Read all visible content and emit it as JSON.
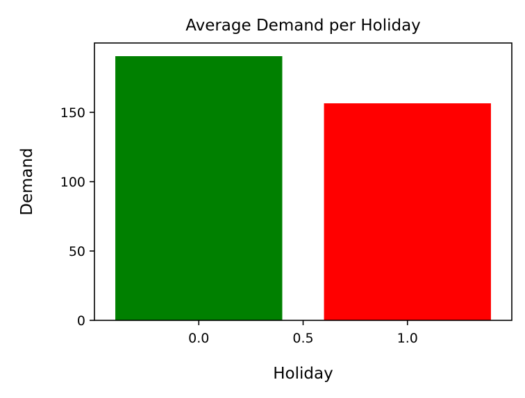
{
  "chart_data": {
    "type": "bar",
    "title": "Average Demand per Holiday",
    "xlabel": "Holiday",
    "ylabel": "Demand",
    "x": [
      0.0,
      1.0
    ],
    "values": [
      190.5,
      156.5
    ],
    "bar_width": 0.8,
    "colors": [
      "#008000",
      "#ff0000"
    ],
    "xlim": [
      -0.5,
      1.5
    ],
    "ylim": [
      0,
      200
    ],
    "xticks": [
      0.0,
      0.5,
      1.0
    ],
    "xtick_labels": [
      "0.0",
      "0.5",
      "1.0"
    ],
    "yticks": [
      0,
      50,
      100,
      150
    ],
    "ytick_labels": [
      "0",
      "50",
      "100",
      "150"
    ],
    "grid": false,
    "legend": false
  }
}
